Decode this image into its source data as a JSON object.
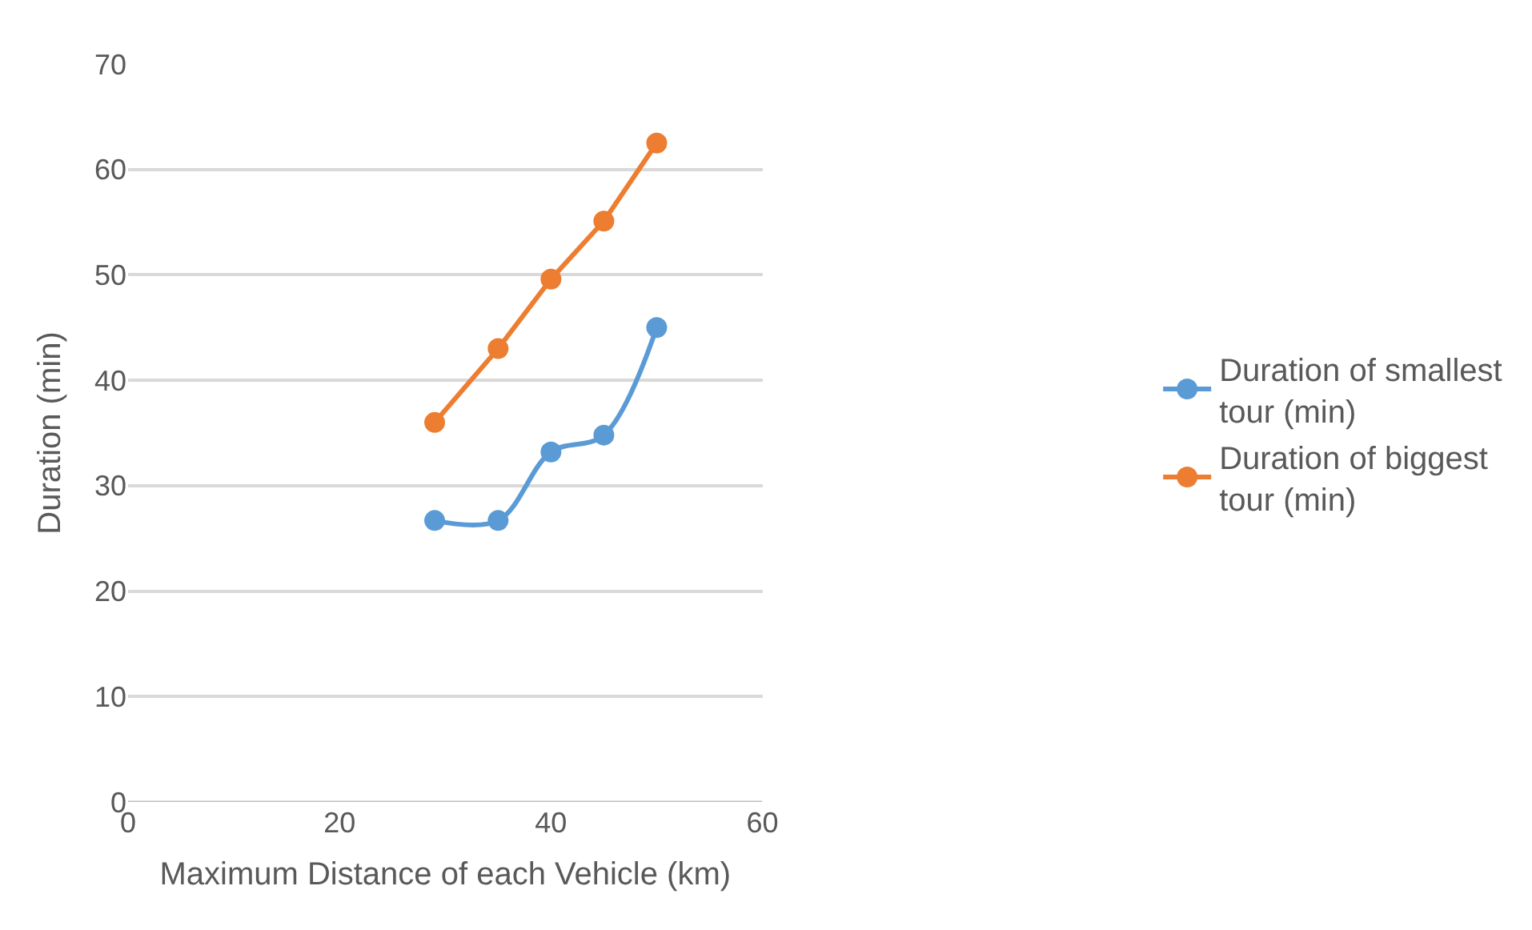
{
  "chart_data": {
    "type": "line",
    "xlabel": "Maximum Distance of each Vehicle (km)",
    "ylabel": "Duration (min)",
    "xlim": [
      0,
      60
    ],
    "xticks": [
      0,
      20,
      40,
      60
    ],
    "ylim": [
      0,
      70
    ],
    "yticks": [
      0,
      10,
      20,
      30,
      40,
      50,
      60,
      70
    ],
    "grid": "y",
    "legend": "right",
    "marker": "circle",
    "line_style": "solid",
    "series": [
      {
        "name": "Duration of smallest tour (min)",
        "color": "#5b9bd5",
        "x": [
          29,
          35,
          40,
          45,
          50
        ],
        "values": [
          26.7,
          26.7,
          33.2,
          34.8,
          45.0
        ]
      },
      {
        "name": "Duration of biggest tour (min)",
        "color": "#ed7d31",
        "x": [
          29,
          35,
          40,
          45,
          50
        ],
        "values": [
          36.0,
          43.0,
          49.6,
          55.1,
          62.5
        ]
      }
    ]
  }
}
